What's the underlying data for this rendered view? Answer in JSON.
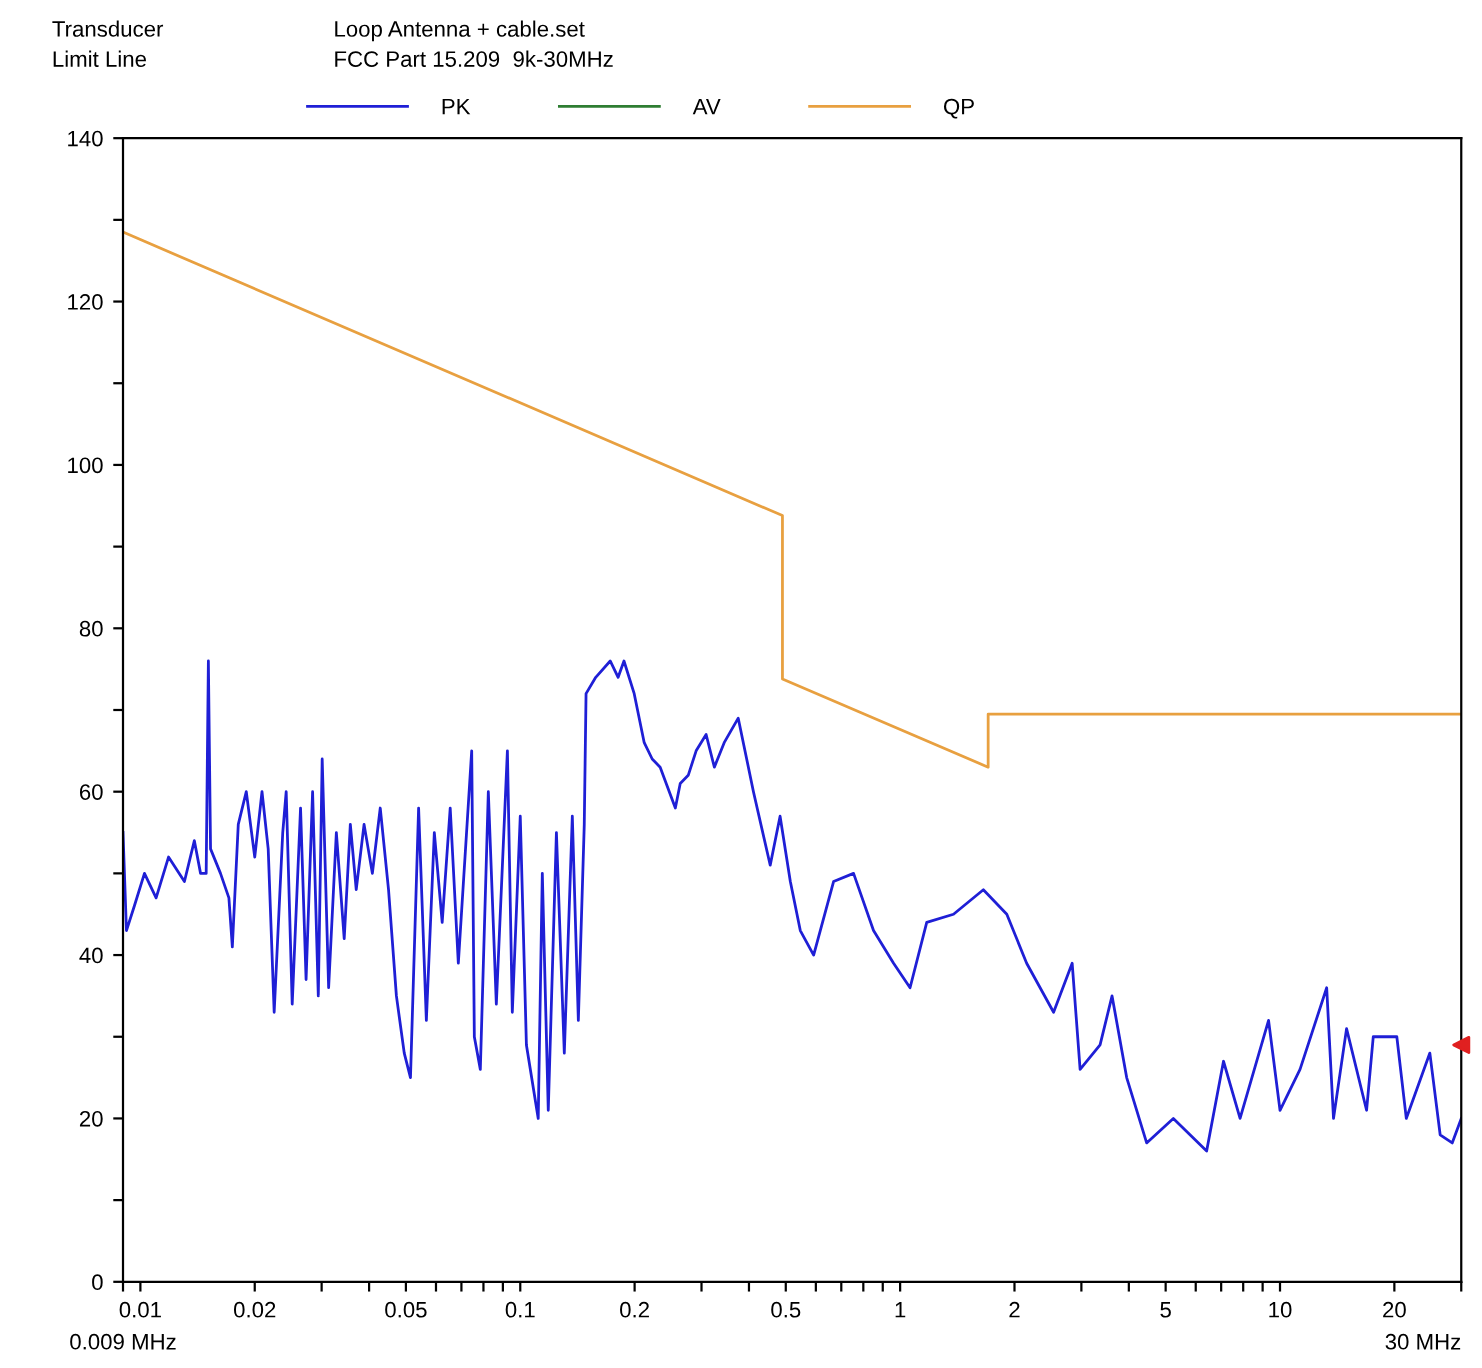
{
  "chart_data": {
    "type": "line",
    "annotations": [
      "Transducer",
      "Limit Line",
      "Loop Antenna + cable.set",
      "FCC Part 15.209  9k-30MHz",
      "0.009 MHz",
      "30 MHz"
    ],
    "log": "x",
    "legend": "top",
    "grid": false,
    "marker": "none",
    "line_style": "solid",
    "xlim": [
      0.009,
      30
    ],
    "ylim": [
      0,
      140
    ],
    "xticks": [
      {
        "value": 0.009,
        "label": null
      },
      0.01,
      0.02,
      {
        "value": 0.03,
        "label": null
      },
      {
        "value": 0.04,
        "label": null
      },
      0.05,
      {
        "value": 0.06,
        "label": null
      },
      {
        "value": 0.07,
        "label": null
      },
      {
        "value": 0.08,
        "label": null
      },
      {
        "value": 0.09,
        "label": null
      },
      0.1,
      0.2,
      {
        "value": 0.3,
        "label": null
      },
      {
        "value": 0.4,
        "label": null
      },
      0.5,
      {
        "value": 0.6,
        "label": null
      },
      {
        "value": 0.7,
        "label": null
      },
      {
        "value": 0.8,
        "label": null
      },
      {
        "value": 0.9,
        "label": null
      },
      1,
      2,
      {
        "value": 3,
        "label": null
      },
      {
        "value": 4,
        "label": null
      },
      5,
      {
        "value": 6,
        "label": null
      },
      {
        "value": 7,
        "label": null
      },
      {
        "value": 8,
        "label": null
      },
      {
        "value": 9,
        "label": null
      },
      10,
      20,
      {
        "value": 30,
        "label": null
      }
    ],
    "yticks": [
      0,
      {
        "value": 10,
        "label": null
      },
      20,
      {
        "value": 30,
        "label": null
      },
      40,
      {
        "value": 50,
        "label": null
      },
      60,
      {
        "value": 70,
        "label": null
      },
      80,
      {
        "value": 90,
        "label": null
      },
      100,
      {
        "value": 110,
        "label": null
      },
      120,
      {
        "value": 130,
        "label": null
      },
      140
    ],
    "series": [
      {
        "name": "PK",
        "color": "#1f1fd6",
        "x": [
          0.009,
          0.00919,
          0.00964,
          0.01025,
          0.011,
          0.01186,
          0.01306,
          0.01387,
          0.0144,
          0.0149,
          0.0151,
          0.0153,
          0.01625,
          0.0171,
          0.01746,
          0.0181,
          0.019,
          0.02,
          0.0209,
          0.0217,
          0.0225,
          0.0237,
          0.0242,
          0.0251,
          0.0264,
          0.0273,
          0.0284,
          0.0294,
          0.0301,
          0.0313,
          0.0328,
          0.0344,
          0.0357,
          0.037,
          0.0388,
          0.0408,
          0.0428,
          0.045,
          0.0472,
          0.0495,
          0.0514,
          0.054,
          0.0566,
          0.0594,
          0.0623,
          0.0654,
          0.0687,
          0.0745,
          0.0757,
          0.0785,
          0.0824,
          0.0865,
          0.0925,
          0.0953,
          0.1,
          0.1038,
          0.1115,
          0.1143,
          0.1185,
          0.1245,
          0.1306,
          0.1371,
          0.1422,
          0.1474,
          0.149,
          0.158,
          0.1725,
          0.181,
          0.1875,
          0.1995,
          0.212,
          0.2225,
          0.2335,
          0.256,
          0.2637,
          0.2768,
          0.2904,
          0.3085,
          0.3243,
          0.3442,
          0.3748,
          0.411,
          0.455,
          0.483,
          0.514,
          0.546,
          0.592,
          0.668,
          0.754,
          0.851,
          0.961,
          1.062,
          1.175,
          1.382,
          1.656,
          1.909,
          2.153,
          2.535,
          2.837,
          2.977,
          3.36,
          3.613,
          3.948,
          4.456,
          5.238,
          6.41,
          7.1,
          7.85,
          9.33,
          10.0,
          11.29,
          13.27,
          13.83,
          14.97,
          16.9,
          17.6,
          20.3,
          21.5,
          24.8,
          26.4,
          28.4,
          30
        ],
        "values": [
          55,
          43,
          46,
          50,
          47,
          52,
          49,
          54,
          50,
          50,
          76,
          53,
          50,
          47,
          41,
          56,
          60,
          52,
          60,
          53,
          33,
          55,
          60,
          34,
          58,
          37,
          60,
          35,
          64,
          36,
          55,
          42,
          56,
          48,
          56,
          50,
          58,
          48,
          35,
          28,
          25,
          58,
          32,
          55,
          44,
          58,
          39,
          65,
          30,
          26,
          60,
          34,
          65,
          33,
          57,
          29,
          20,
          50,
          21,
          55,
          28,
          57,
          32,
          56,
          72,
          74,
          76,
          74,
          76,
          72,
          66,
          64,
          63,
          58,
          61,
          62,
          65,
          67,
          63,
          66,
          69,
          60,
          51,
          57,
          49,
          43,
          40,
          49,
          50,
          43,
          39,
          36,
          44,
          45,
          48,
          45,
          39,
          33,
          39,
          26,
          29,
          35,
          25,
          17,
          20,
          16,
          27,
          20,
          32,
          21,
          26,
          36,
          20,
          31,
          21,
          30,
          30,
          20,
          28,
          18,
          17,
          20
        ]
      },
      {
        "name": "AV",
        "color": "#2e7d32"
      },
      {
        "name": "QP",
        "color": "#e8a040",
        "x": [
          0.009,
          0.49,
          0.49,
          1.705,
          1.705,
          30
        ],
        "values": [
          128.5,
          93.8,
          73.8,
          63,
          69.5,
          69.5
        ]
      },
      {
        "type": "scatter",
        "color": "#e02020",
        "marker": "triangle",
        "x": [
          30
        ],
        "values": [
          29
        ]
      }
    ]
  }
}
